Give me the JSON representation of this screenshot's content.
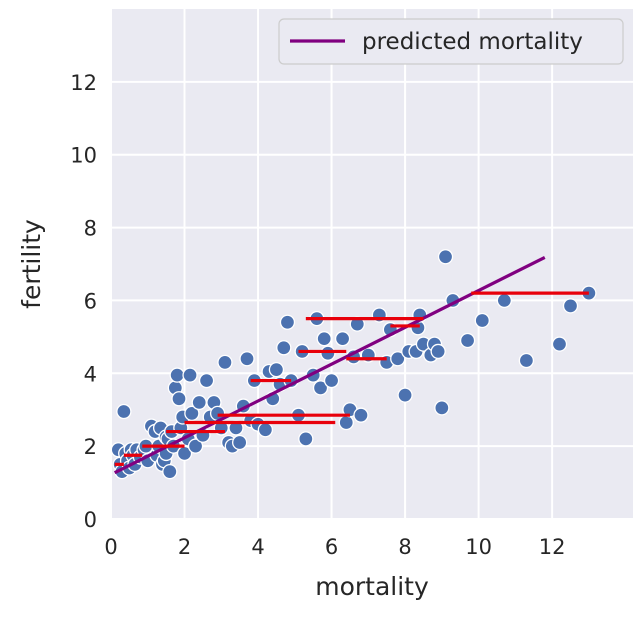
{
  "chart_data": {
    "type": "scatter",
    "xlabel": "mortality",
    "ylabel": "fertility",
    "xlim": [
      0,
      14.2
    ],
    "ylim": [
      0,
      14
    ],
    "xticks": [
      0,
      2,
      4,
      6,
      8,
      10,
      12
    ],
    "yticks": [
      0,
      2,
      4,
      6,
      8,
      10,
      12
    ],
    "grid": true,
    "legend_position": "top-right",
    "colors": {
      "background": "#eaeaf2",
      "grid": "#ffffff",
      "points": "#4c72b0",
      "point_edge": "#ffffff",
      "fit_line": "#800080",
      "segments": "#e8000b",
      "text": "#262626"
    },
    "series": [
      {
        "type": "scatter",
        "points": [
          [
            0.2,
            1.9
          ],
          [
            0.25,
            1.5
          ],
          [
            0.3,
            1.3
          ],
          [
            0.35,
            2.95
          ],
          [
            0.4,
            1.8
          ],
          [
            0.45,
            1.6
          ],
          [
            0.5,
            1.4
          ],
          [
            0.55,
            1.9
          ],
          [
            0.6,
            1.75
          ],
          [
            0.65,
            1.5
          ],
          [
            0.7,
            1.9
          ],
          [
            0.8,
            1.7
          ],
          [
            0.9,
            1.9
          ],
          [
            0.95,
            2.0
          ],
          [
            1.0,
            1.6
          ],
          [
            1.1,
            2.55
          ],
          [
            1.2,
            2.4
          ],
          [
            1.25,
            1.75
          ],
          [
            1.3,
            2.0
          ],
          [
            1.35,
            2.5
          ],
          [
            1.4,
            1.5
          ],
          [
            1.45,
            1.6
          ],
          [
            1.5,
            2.25
          ],
          [
            1.5,
            1.8
          ],
          [
            1.55,
            2.2
          ],
          [
            1.6,
            1.3
          ],
          [
            1.65,
            2.4
          ],
          [
            1.7,
            2.0
          ],
          [
            1.75,
            3.6
          ],
          [
            1.8,
            3.95
          ],
          [
            1.85,
            3.3
          ],
          [
            1.9,
            2.5
          ],
          [
            1.95,
            2.8
          ],
          [
            2.0,
            1.8
          ],
          [
            2.1,
            2.2
          ],
          [
            2.15,
            3.95
          ],
          [
            2.2,
            2.9
          ],
          [
            2.3,
            2.0
          ],
          [
            2.4,
            3.2
          ],
          [
            2.5,
            2.3
          ],
          [
            2.6,
            3.8
          ],
          [
            2.7,
            2.8
          ],
          [
            2.8,
            3.2
          ],
          [
            2.9,
            2.9
          ],
          [
            3.0,
            2.5
          ],
          [
            3.1,
            4.3
          ],
          [
            3.2,
            2.1
          ],
          [
            3.3,
            2.0
          ],
          [
            3.4,
            2.5
          ],
          [
            3.5,
            2.1
          ],
          [
            3.6,
            3.1
          ],
          [
            3.7,
            4.4
          ],
          [
            3.8,
            2.7
          ],
          [
            3.9,
            3.8
          ],
          [
            4.0,
            2.6
          ],
          [
            4.2,
            2.45
          ],
          [
            4.3,
            4.05
          ],
          [
            4.4,
            3.3
          ],
          [
            4.5,
            4.1
          ],
          [
            4.6,
            3.7
          ],
          [
            4.7,
            4.7
          ],
          [
            4.8,
            5.4
          ],
          [
            4.9,
            3.8
          ],
          [
            5.1,
            2.85
          ],
          [
            5.2,
            4.6
          ],
          [
            5.3,
            2.2
          ],
          [
            5.5,
            3.95
          ],
          [
            5.6,
            5.5
          ],
          [
            5.7,
            3.6
          ],
          [
            5.8,
            4.95
          ],
          [
            5.9,
            4.55
          ],
          [
            6.0,
            3.8
          ],
          [
            6.3,
            4.95
          ],
          [
            6.4,
            2.65
          ],
          [
            6.5,
            3.0
          ],
          [
            6.6,
            4.45
          ],
          [
            6.7,
            5.35
          ],
          [
            6.8,
            2.85
          ],
          [
            7.0,
            4.5
          ],
          [
            7.3,
            5.6
          ],
          [
            7.5,
            4.3
          ],
          [
            7.6,
            5.2
          ],
          [
            7.8,
            4.4
          ],
          [
            8.0,
            3.4
          ],
          [
            8.1,
            4.6
          ],
          [
            8.3,
            4.6
          ],
          [
            8.35,
            5.25
          ],
          [
            8.4,
            5.6
          ],
          [
            8.5,
            4.8
          ],
          [
            8.7,
            4.5
          ],
          [
            8.8,
            4.8
          ],
          [
            8.9,
            4.6
          ],
          [
            9.0,
            3.05
          ],
          [
            9.1,
            7.2
          ],
          [
            9.3,
            6.0
          ],
          [
            9.7,
            4.9
          ],
          [
            10.1,
            5.45
          ],
          [
            10.7,
            6.0
          ],
          [
            11.3,
            4.35
          ],
          [
            12.2,
            4.8
          ],
          [
            12.5,
            5.85
          ],
          [
            13.0,
            6.2
          ]
        ]
      },
      {
        "type": "line",
        "name": "predicted mortality",
        "x": [
          0.1,
          11.8
        ],
        "y": [
          1.27,
          7.18
        ]
      }
    ],
    "segments": [
      {
        "x": [
          0.1,
          0.35
        ],
        "y": 1.5
      },
      {
        "x": [
          0.35,
          0.85
        ],
        "y": 1.75
      },
      {
        "x": [
          0.85,
          2.0
        ],
        "y": 2.0
      },
      {
        "x": [
          1.5,
          3.1
        ],
        "y": 2.4
      },
      {
        "x": [
          2.0,
          6.1
        ],
        "y": 2.65
      },
      {
        "x": [
          2.9,
          6.5
        ],
        "y": 2.85
      },
      {
        "x": [
          3.8,
          4.9
        ],
        "y": 3.8
      },
      {
        "x": [
          5.1,
          6.4
        ],
        "y": 4.6
      },
      {
        "x": [
          6.4,
          7.5
        ],
        "y": 4.4
      },
      {
        "x": [
          7.6,
          8.4
        ],
        "y": 5.3
      },
      {
        "x": [
          5.3,
          8.5
        ],
        "y": 5.5
      },
      {
        "x": [
          9.8,
          13.0
        ],
        "y": 6.2
      }
    ]
  }
}
